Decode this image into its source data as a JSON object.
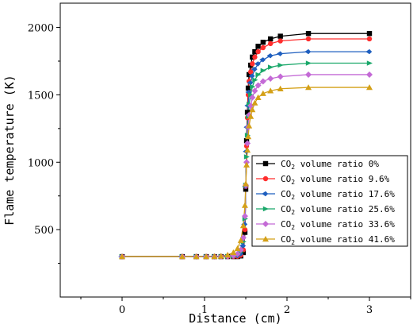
{
  "chart_data": {
    "type": "line",
    "title": "",
    "xlabel": "Distance (cm)",
    "ylabel": "Flame temperature (K)",
    "xlim": [
      -0.75,
      3.5
    ],
    "ylim": [
      0,
      2180
    ],
    "xticks": [
      0,
      1,
      2,
      3
    ],
    "yticks": [
      500,
      1000,
      1500,
      2000
    ],
    "xtick_labels": [
      "0",
      "1",
      "2",
      "3"
    ],
    "ytick_labels": [
      "500",
      "1000",
      "1500",
      "2000"
    ],
    "legend_position": "right",
    "grid": false,
    "series": [
      {
        "legend_prefix": "CO",
        "legend_sub": "2",
        "legend_suffix": " volume ratio 0%",
        "color": "#000000",
        "marker": "square",
        "x": [
          0,
          0.73,
          0.9,
          1.02,
          1.12,
          1.2,
          1.28,
          1.35,
          1.4,
          1.44,
          1.47,
          1.49,
          1.5,
          1.51,
          1.52,
          1.53,
          1.54,
          1.56,
          1.58,
          1.61,
          1.65,
          1.71,
          1.8,
          1.92,
          2.26,
          3.0
        ],
        "y": [
          300,
          300,
          300,
          300,
          300,
          300,
          300,
          300,
          300,
          305,
          330,
          480,
          800,
          1160,
          1370,
          1550,
          1650,
          1720,
          1780,
          1820,
          1860,
          1890,
          1915,
          1935,
          1955,
          1955
        ]
      },
      {
        "legend_prefix": "CO",
        "legend_sub": "2",
        "legend_suffix": " volume ratio 9.6%",
        "color": "#ff2d2d",
        "marker": "circle",
        "x": [
          0,
          0.73,
          0.9,
          1.02,
          1.12,
          1.2,
          1.28,
          1.35,
          1.4,
          1.44,
          1.47,
          1.49,
          1.5,
          1.51,
          1.52,
          1.53,
          1.54,
          1.56,
          1.58,
          1.61,
          1.65,
          1.71,
          1.8,
          1.92,
          2.26,
          3.0
        ],
        "y": [
          300,
          300,
          300,
          300,
          300,
          300,
          300,
          300,
          302,
          310,
          350,
          500,
          820,
          1120,
          1330,
          1500,
          1600,
          1670,
          1730,
          1780,
          1820,
          1850,
          1880,
          1900,
          1915,
          1915
        ]
      },
      {
        "legend_prefix": "CO",
        "legend_sub": "2",
        "legend_suffix": " volume ratio 17.6%",
        "color": "#1f5fbf",
        "marker": "diamond-left",
        "x": [
          0,
          0.73,
          0.9,
          1.02,
          1.12,
          1.2,
          1.28,
          1.35,
          1.4,
          1.44,
          1.47,
          1.49,
          1.5,
          1.51,
          1.52,
          1.53,
          1.54,
          1.56,
          1.58,
          1.61,
          1.65,
          1.71,
          1.8,
          1.92,
          2.26,
          3.0
        ],
        "y": [
          300,
          300,
          300,
          300,
          300,
          300,
          300,
          302,
          306,
          320,
          380,
          540,
          820,
          1080,
          1260,
          1420,
          1520,
          1590,
          1640,
          1690,
          1730,
          1760,
          1790,
          1805,
          1820,
          1820
        ]
      },
      {
        "legend_prefix": "CO",
        "legend_sub": "2",
        "legend_suffix": " volume ratio 25.6%",
        "color": "#1aa86a",
        "marker": "triangle-right",
        "x": [
          0,
          0.73,
          0.9,
          1.02,
          1.12,
          1.2,
          1.28,
          1.35,
          1.4,
          1.44,
          1.47,
          1.49,
          1.5,
          1.51,
          1.52,
          1.53,
          1.54,
          1.56,
          1.58,
          1.61,
          1.65,
          1.71,
          1.8,
          1.92,
          2.26,
          3.0
        ],
        "y": [
          300,
          300,
          300,
          300,
          300,
          300,
          301,
          304,
          312,
          335,
          410,
          580,
          830,
          1040,
          1200,
          1340,
          1430,
          1500,
          1560,
          1610,
          1650,
          1680,
          1705,
          1720,
          1735,
          1735
        ]
      },
      {
        "legend_prefix": "CO",
        "legend_sub": "2",
        "legend_suffix": " volume ratio 33.6%",
        "color": "#c46ad6",
        "marker": "diamond",
        "x": [
          0,
          0.73,
          0.9,
          1.02,
          1.12,
          1.2,
          1.28,
          1.35,
          1.4,
          1.44,
          1.47,
          1.49,
          1.5,
          1.51,
          1.52,
          1.53,
          1.54,
          1.56,
          1.58,
          1.61,
          1.65,
          1.71,
          1.8,
          1.92,
          2.26,
          3.0
        ],
        "y": [
          300,
          300,
          300,
          300,
          300,
          301,
          303,
          308,
          320,
          350,
          440,
          600,
          830,
          1000,
          1140,
          1260,
          1350,
          1420,
          1480,
          1530,
          1570,
          1600,
          1620,
          1635,
          1650,
          1650
        ]
      },
      {
        "legend_prefix": "CO",
        "legend_sub": "2",
        "legend_suffix": " volume ratio 41.6%",
        "color": "#d4a017",
        "marker": "triangle-up",
        "x": [
          0,
          0.73,
          0.9,
          1.02,
          1.12,
          1.2,
          1.28,
          1.35,
          1.4,
          1.44,
          1.47,
          1.49,
          1.5,
          1.51,
          1.52,
          1.53,
          1.54,
          1.56,
          1.58,
          1.61,
          1.65,
          1.71,
          1.8,
          1.92,
          2.26,
          3.0
        ],
        "y": [
          300,
          300,
          300,
          300,
          301,
          304,
          312,
          330,
          360,
          420,
          530,
          680,
          840,
          980,
          1090,
          1190,
          1270,
          1340,
          1390,
          1440,
          1480,
          1510,
          1530,
          1545,
          1555,
          1555
        ]
      }
    ]
  }
}
